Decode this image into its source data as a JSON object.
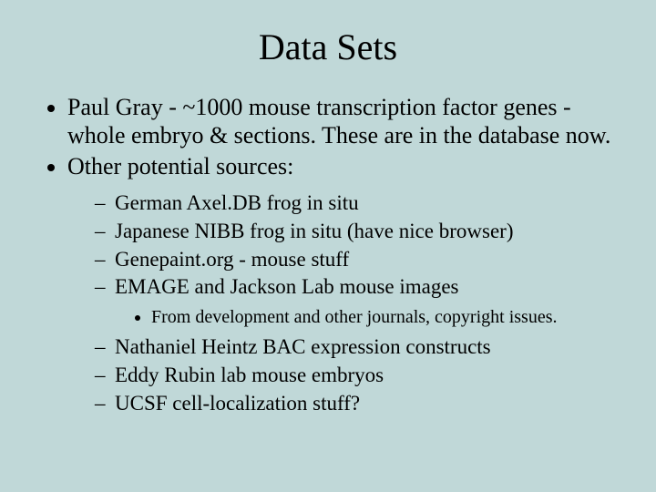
{
  "background_color": "#c0d8d8",
  "text_color": "#000000",
  "font_family": "Times New Roman",
  "title": {
    "text": "Data Sets",
    "fontsize": 40
  },
  "bullets_level1": [
    "Paul Gray - ~1000 mouse transcription factor genes - whole embryo & sections. These are in the database now.",
    "Other potential sources:"
  ],
  "bullets_level2_group1": [
    "German Axel.DB frog in situ",
    "Japanese NIBB frog in situ (have nice browser)",
    "Genepaint.org - mouse stuff",
    "EMAGE and Jackson Lab mouse images"
  ],
  "bullets_level3": [
    "From development and other journals, copyright issues."
  ],
  "bullets_level2_group2": [
    "Nathaniel Heintz BAC expression constructs",
    "Eddy Rubin lab mouse embryos",
    "UCSF cell-localization stuff?"
  ],
  "fontsizes": {
    "level1": 26,
    "level2": 23,
    "level3": 20
  }
}
